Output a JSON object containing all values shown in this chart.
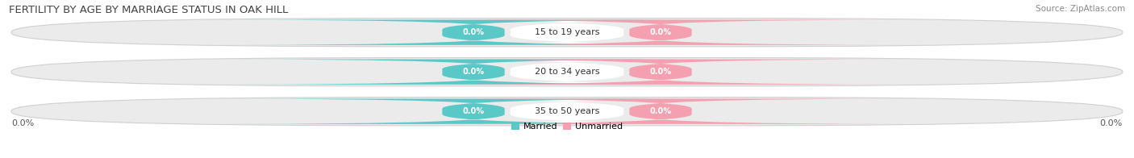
{
  "title": "FERTILITY BY AGE BY MARRIAGE STATUS IN OAK HILL",
  "source": "Source: ZipAtlas.com",
  "categories": [
    "15 to 19 years",
    "20 to 34 years",
    "35 to 50 years"
  ],
  "married_values": [
    0.0,
    0.0,
    0.0
  ],
  "unmarried_values": [
    0.0,
    0.0,
    0.0
  ],
  "married_color": "#5bc8c8",
  "unmarried_color": "#f4a0b0",
  "title_fontsize": 9.5,
  "source_fontsize": 7.5,
  "axis_label": "0.0%",
  "background_color": "#ffffff",
  "bar_bg_color": "#ebebeb",
  "bar_border_color": "#d0d0d0",
  "label_bg_color": "#f8f8f8"
}
